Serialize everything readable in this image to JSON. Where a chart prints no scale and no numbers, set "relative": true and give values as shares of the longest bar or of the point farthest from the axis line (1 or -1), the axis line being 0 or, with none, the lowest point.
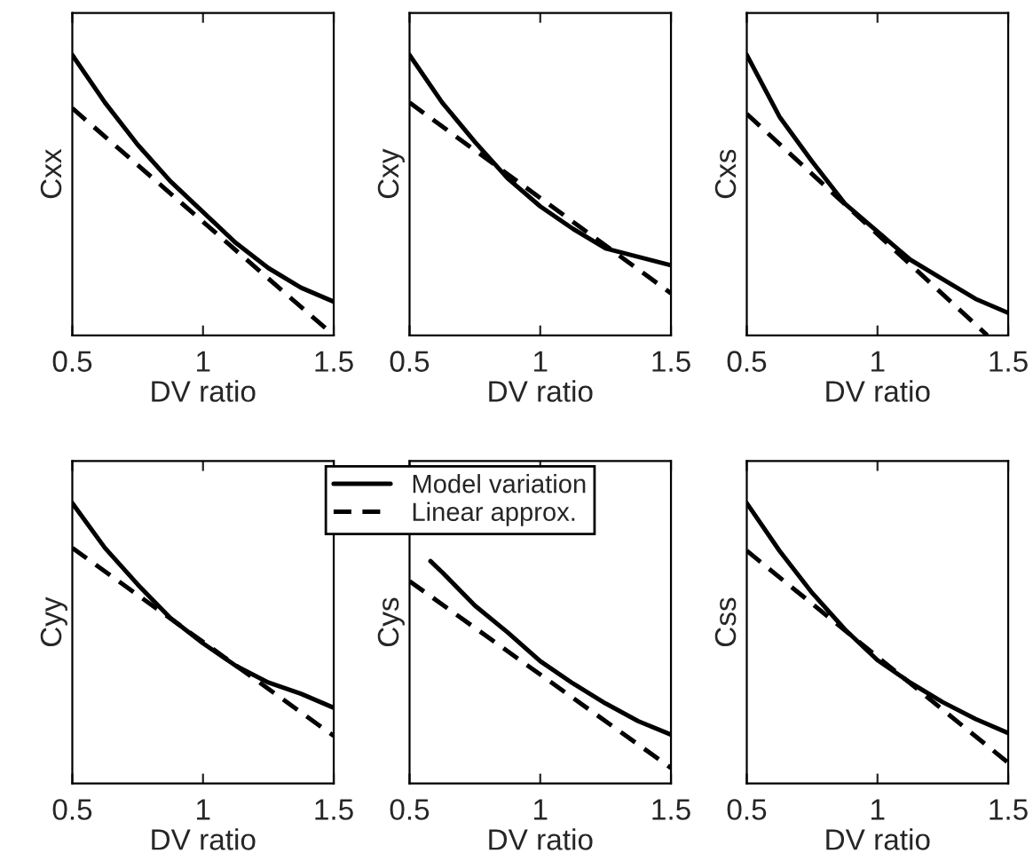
{
  "chart_data": [
    {
      "type": "line",
      "xlabel": "DV ratio",
      "ylabel": "Cxx",
      "relative": true,
      "xlim": [
        0.5,
        1.5
      ],
      "xticks": [
        0.5,
        1,
        1.5
      ],
      "tick_labels": "x",
      "legend": false,
      "series": [
        {
          "color": "#000000",
          "line_style": "solid",
          "x": [
            0.5,
            0.625,
            0.75,
            0.875,
            1,
            1.125,
            1.25,
            1.375,
            1.5
          ],
          "values": [
            1,
            0.83,
            0.68,
            0.55,
            0.44,
            0.33,
            0.24,
            0.17,
            0.12
          ]
        },
        {
          "color": "#000000",
          "line_style": "dashed",
          "x": [
            0.5,
            1.5
          ],
          "values": [
            0.81,
            0
          ]
        }
      ]
    },
    {
      "type": "line",
      "xlabel": "DV ratio",
      "ylabel": "Cxy",
      "relative": true,
      "xlim": [
        0.5,
        1.5
      ],
      "xticks": [
        0.5,
        1,
        1.5
      ],
      "tick_labels": "x",
      "legend": false,
      "series": [
        {
          "color": "#000000",
          "line_style": "solid",
          "x": [
            0.5,
            0.625,
            0.75,
            0.875,
            1,
            1.125,
            1.25,
            1.375,
            1.5
          ],
          "values": [
            1,
            0.83,
            0.69,
            0.56,
            0.46,
            0.38,
            0.31,
            0.28,
            0.25
          ]
        },
        {
          "color": "#000000",
          "line_style": "dashed",
          "x": [
            0.5,
            1.5
          ],
          "values": [
            0.83,
            0.15
          ]
        }
      ]
    },
    {
      "type": "line",
      "xlabel": "DV ratio",
      "ylabel": "Cxs",
      "relative": true,
      "xlim": [
        0.5,
        1.5
      ],
      "xticks": [
        0.5,
        1,
        1.5
      ],
      "tick_labels": "x",
      "legend": false,
      "series": [
        {
          "color": "#000000",
          "line_style": "solid",
          "x": [
            0.5,
            0.625,
            0.75,
            0.875,
            1,
            1.125,
            1.25,
            1.375,
            1.5
          ],
          "values": [
            1,
            0.78,
            0.62,
            0.47,
            0.37,
            0.27,
            0.2,
            0.13,
            0.08
          ]
        },
        {
          "color": "#000000",
          "line_style": "dashed",
          "x": [
            0.5,
            1.42
          ],
          "values": [
            0.79,
            0
          ]
        }
      ]
    },
    {
      "type": "line",
      "xlabel": "DV ratio",
      "ylabel": "Cyy",
      "relative": true,
      "xlim": [
        0.5,
        1.5
      ],
      "xticks": [
        0.5,
        1,
        1.5
      ],
      "tick_labels": "x",
      "legend": false,
      "series": [
        {
          "color": "#000000",
          "line_style": "solid",
          "x": [
            0.5,
            0.625,
            0.75,
            0.875,
            1,
            1.125,
            1.25,
            1.375,
            1.5
          ],
          "values": [
            1,
            0.84,
            0.71,
            0.59,
            0.5,
            0.42,
            0.36,
            0.32,
            0.27
          ]
        },
        {
          "color": "#000000",
          "line_style": "dashed",
          "x": [
            0.5,
            1.5
          ],
          "values": [
            0.84,
            0.17
          ]
        }
      ]
    },
    {
      "type": "line",
      "xlabel": "DV ratio",
      "ylabel": "Cys",
      "relative": true,
      "xlim": [
        0.5,
        1.5
      ],
      "xticks": [
        0.5,
        1,
        1.5
      ],
      "tick_labels": "x",
      "legend": "top left",
      "series": [
        {
          "name": "Model variation",
          "color": "#000000",
          "line_style": "solid",
          "x": [
            0.58,
            0.625,
            0.75,
            0.875,
            1,
            1.125,
            1.25,
            1.375,
            1.5
          ],
          "values": [
            1,
            0.95,
            0.8,
            0.68,
            0.55,
            0.45,
            0.36,
            0.28,
            0.22
          ]
        },
        {
          "name": "Linear approx.",
          "color": "#000000",
          "line_style": "dashed",
          "x": [
            0.5,
            1.5
          ],
          "values": [
            0.91,
            0.07
          ]
        }
      ]
    },
    {
      "type": "line",
      "xlabel": "DV ratio",
      "ylabel": "Css",
      "relative": true,
      "xlim": [
        0.5,
        1.5
      ],
      "xticks": [
        0.5,
        1,
        1.5
      ],
      "tick_labels": "x",
      "legend": false,
      "series": [
        {
          "color": "#000000",
          "line_style": "solid",
          "x": [
            0.5,
            0.625,
            0.75,
            0.875,
            1,
            1.125,
            1.25,
            1.375,
            1.5
          ],
          "values": [
            1,
            0.83,
            0.68,
            0.55,
            0.44,
            0.36,
            0.29,
            0.23,
            0.18
          ]
        },
        {
          "color": "#000000",
          "line_style": "dashed",
          "x": [
            0.5,
            1.5
          ],
          "values": [
            0.83,
            0.074
          ]
        }
      ]
    }
  ]
}
